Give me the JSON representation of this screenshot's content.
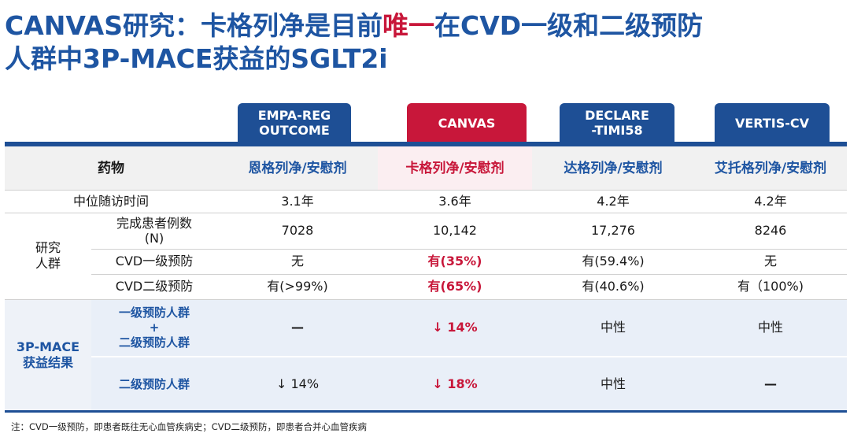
{
  "title": {
    "line1_a": "CANVAS研究：卡格列净是目前",
    "line1_hl": "唯一",
    "line1_b": "在CVD一级和二级预防",
    "line2": "人群中3P-MACE获益的SGLT2i"
  },
  "trials": [
    {
      "line1": "EMPA-REG",
      "line2": "OUTCOME"
    },
    {
      "line1": "CANVAS",
      "line2": ""
    },
    {
      "line1": "DECLARE",
      "line2": "-TIMI58"
    },
    {
      "line1": "VERTIS-CV",
      "line2": ""
    }
  ],
  "table": {
    "drug_label": "药物",
    "drugs": [
      "恩格列净/安慰剂",
      "卡格列净/安慰剂",
      "达格列净/安慰剂",
      "艾托格列净/安慰剂"
    ],
    "followup_label": "中位随访时间",
    "followup": [
      "3.1年",
      "3.6年",
      "4.2年",
      "4.2年"
    ],
    "population_group": "研究\n人群",
    "n_label_1": "完成患者例数",
    "n_label_2": "(N)",
    "n": [
      "7028",
      "10,142",
      "17,276",
      "8246"
    ],
    "primary_label": "CVD一级预防",
    "primary": [
      "无",
      "有(35%)",
      "有(59.4%)",
      "无"
    ],
    "secondary_label": "CVD二级预防",
    "secondary": [
      "有(>99%)",
      "有(65%)",
      "有(40.6%)",
      "有（100%)"
    ],
    "mace_group_1": "3P-MACE",
    "mace_group_2": "获益结果",
    "both_label_1": "一级预防人群",
    "both_label_2": "+",
    "both_label_3": "二级预防人群",
    "both": [
      "—",
      "↓ 14%",
      "中性",
      "中性"
    ],
    "secondary_only_label": "二级预防人群",
    "secondary_only": [
      "↓ 14%",
      "↓ 18%",
      "中性",
      "—"
    ]
  },
  "footnote": "注：CVD一级预防，即患者既往无心血管疾病史；CVD二级预防，即患者合并心血管疾病",
  "colors": {
    "brand_blue": "#1e55a2",
    "accent_red": "#c8173a"
  }
}
